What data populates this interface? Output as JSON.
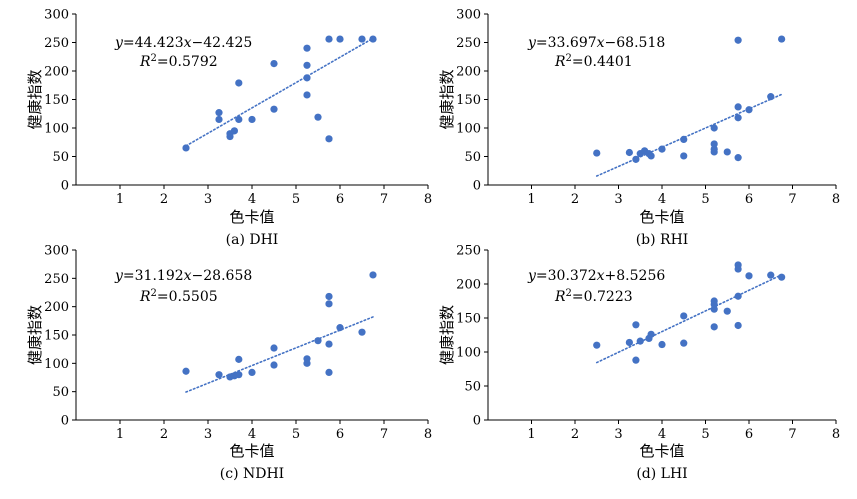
{
  "chart_data": [
    {
      "type": "scatter",
      "caption": "(a) DHI",
      "xlabel": "色卡值",
      "ylabel": "健康指数",
      "xlim": [
        0,
        8
      ],
      "ylim": [
        0,
        300
      ],
      "xticks": [
        "1",
        "2",
        "3",
        "4",
        "5",
        "6",
        "7",
        "8"
      ],
      "yticks": [
        "0",
        "50",
        "100",
        "150",
        "200",
        "250",
        "300"
      ],
      "equation": "y=44.423x−42.425",
      "r2": "R²=0.5792",
      "trend": {
        "slope": 44.423,
        "intercept": -42.425,
        "x_from": 2.5,
        "x_to": 6.75
      },
      "points": [
        [
          2.5,
          65
        ],
        [
          3.25,
          127
        ],
        [
          3.25,
          115
        ],
        [
          3.5,
          85
        ],
        [
          3.5,
          90
        ],
        [
          3.6,
          95
        ],
        [
          3.7,
          179
        ],
        [
          3.7,
          115
        ],
        [
          4,
          115
        ],
        [
          4.5,
          213
        ],
        [
          4.5,
          133
        ],
        [
          5.25,
          240
        ],
        [
          5.25,
          210
        ],
        [
          5.25,
          188
        ],
        [
          5.25,
          158
        ],
        [
          5.5,
          119
        ],
        [
          5.75,
          81
        ],
        [
          5.75,
          256
        ],
        [
          6,
          256
        ],
        [
          6.5,
          256
        ],
        [
          6.75,
          256
        ]
      ],
      "color": "#4472c4"
    },
    {
      "type": "scatter",
      "caption": "(b) RHI",
      "xlabel": "色卡值",
      "ylabel": "健康指数",
      "xlim": [
        0,
        8
      ],
      "ylim": [
        0,
        300
      ],
      "xticks": [
        "1",
        "2",
        "3",
        "4",
        "5",
        "6",
        "7",
        "8"
      ],
      "yticks": [
        "0",
        "50",
        "100",
        "150",
        "200",
        "250",
        "300"
      ],
      "equation": "y=33.697x−68.518",
      "r2": "R²=0.4401",
      "trend": {
        "slope": 33.697,
        "intercept": -68.518,
        "x_from": 2.5,
        "x_to": 6.75
      },
      "points": [
        [
          2.5,
          56
        ],
        [
          3.25,
          57
        ],
        [
          3.4,
          45
        ],
        [
          3.5,
          55
        ],
        [
          3.6,
          60
        ],
        [
          3.7,
          55
        ],
        [
          3.75,
          51
        ],
        [
          4,
          63
        ],
        [
          4.5,
          80
        ],
        [
          4.5,
          51
        ],
        [
          5.2,
          100
        ],
        [
          5.2,
          72
        ],
        [
          5.2,
          63
        ],
        [
          5.2,
          58
        ],
        [
          5.5,
          58
        ],
        [
          5.75,
          137
        ],
        [
          5.75,
          118
        ],
        [
          5.75,
          48
        ],
        [
          5.75,
          254
        ],
        [
          6,
          132
        ],
        [
          6.5,
          155
        ],
        [
          6.75,
          256
        ]
      ],
      "color": "#4472c4"
    },
    {
      "type": "scatter",
      "caption": "(c) NDHI",
      "xlabel": "色卡值",
      "ylabel": "健康指数",
      "xlim": [
        0,
        8
      ],
      "ylim": [
        0,
        300
      ],
      "xticks": [
        "1",
        "2",
        "3",
        "4",
        "5",
        "6",
        "7",
        "8"
      ],
      "yticks": [
        "0",
        "50",
        "100",
        "150",
        "200",
        "250",
        "300"
      ],
      "equation": "y=31.192x−28.658",
      "r2": "R²=0.5505",
      "trend": {
        "slope": 31.192,
        "intercept": -28.658,
        "x_from": 2.5,
        "x_to": 6.75
      },
      "points": [
        [
          2.5,
          86
        ],
        [
          3.25,
          80
        ],
        [
          3.5,
          76
        ],
        [
          3.6,
          78
        ],
        [
          3.7,
          80
        ],
        [
          3.7,
          107
        ],
        [
          4,
          84
        ],
        [
          4.5,
          127
        ],
        [
          4.5,
          97
        ],
        [
          5.25,
          108
        ],
        [
          5.25,
          100
        ],
        [
          5.5,
          140
        ],
        [
          5.75,
          218
        ],
        [
          5.75,
          205
        ],
        [
          5.75,
          134
        ],
        [
          5.75,
          84
        ],
        [
          6,
          163
        ],
        [
          6.5,
          155
        ],
        [
          6.75,
          256
        ]
      ],
      "color": "#4472c4"
    },
    {
      "type": "scatter",
      "caption": "(d) LHI",
      "xlabel": "色卡值",
      "ylabel": "健康指数",
      "xlim": [
        0,
        8
      ],
      "ylim": [
        0,
        250
      ],
      "xticks": [
        "1",
        "2",
        "3",
        "4",
        "5",
        "6",
        "7",
        "8"
      ],
      "yticks": [
        "0",
        "50",
        "100",
        "150",
        "200",
        "250"
      ],
      "equation": "y=30.372x+8.5256",
      "r2": "R²=0.7223",
      "trend": {
        "slope": 30.372,
        "intercept": 8.5256,
        "x_from": 2.5,
        "x_to": 6.75
      },
      "points": [
        [
          2.5,
          110
        ],
        [
          3.25,
          114
        ],
        [
          3.4,
          88
        ],
        [
          3.4,
          140
        ],
        [
          3.5,
          116
        ],
        [
          3.7,
          120
        ],
        [
          3.75,
          126
        ],
        [
          4,
          111
        ],
        [
          4.5,
          153
        ],
        [
          4.5,
          113
        ],
        [
          5.2,
          175
        ],
        [
          5.2,
          170
        ],
        [
          5.2,
          163
        ],
        [
          5.2,
          137
        ],
        [
          5.5,
          160
        ],
        [
          5.75,
          228
        ],
        [
          5.75,
          222
        ],
        [
          5.75,
          182
        ],
        [
          5.75,
          139
        ],
        [
          6,
          212
        ],
        [
          6.5,
          213
        ],
        [
          6.75,
          210
        ]
      ],
      "color": "#4472c4"
    }
  ]
}
